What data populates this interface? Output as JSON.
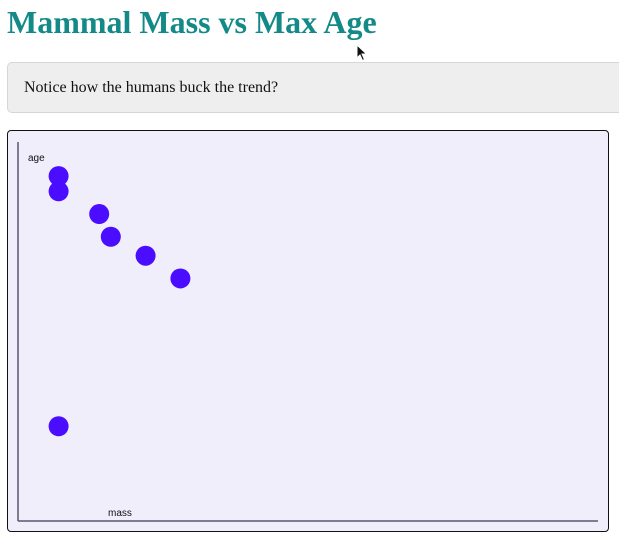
{
  "page": {
    "title": "Mammal Mass vs Max Age",
    "note": "Notice how the humans buck the trend?"
  },
  "colors": {
    "title": "#138a87",
    "point": "#4a0dff",
    "panel_background": "#f1eefc"
  },
  "chart_data": {
    "type": "scatter",
    "xlabel": "mass",
    "ylabel": "age",
    "grid": false,
    "legend": "none",
    "xlim": [
      0,
      100
    ],
    "ylim": [
      0,
      100
    ],
    "points": [
      {
        "x": 7,
        "y": 91
      },
      {
        "x": 7,
        "y": 87
      },
      {
        "x": 14,
        "y": 81
      },
      {
        "x": 16,
        "y": 75
      },
      {
        "x": 22,
        "y": 70
      },
      {
        "x": 28,
        "y": 64
      },
      {
        "x": 7,
        "y": 25
      }
    ]
  }
}
